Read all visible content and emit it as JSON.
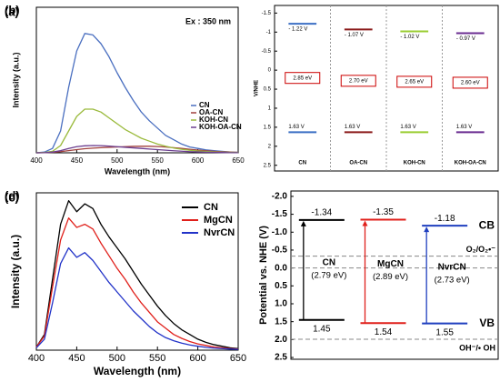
{
  "chart_data": [
    {
      "type": "line",
      "panel_label": "(a)",
      "xlabel": "Wavelength (nm)",
      "ylabel": "Intensity (a.u.)",
      "annotation": "Ex : 350 nm",
      "legend": "right",
      "xlim": [
        400,
        650
      ],
      "xticks": [
        400,
        450,
        500,
        550,
        600,
        650
      ],
      "ylim": [
        0,
        100
      ],
      "x": [
        400,
        410,
        420,
        430,
        440,
        450,
        460,
        470,
        480,
        490,
        500,
        510,
        520,
        530,
        540,
        550,
        560,
        570,
        580,
        590,
        600,
        610,
        620,
        630,
        640,
        650
      ],
      "series": [
        {
          "name": "CN",
          "color": "#4a6fc0",
          "values": [
            0,
            0.5,
            3,
            15,
            45,
            70,
            82,
            81,
            75,
            66,
            55,
            45,
            36,
            28,
            22,
            17,
            12,
            9,
            6,
            4,
            3,
            2,
            1.5,
            1,
            0.5,
            0.3
          ]
        },
        {
          "name": "OA-CN",
          "color": "#a0413d",
          "values": [
            0,
            0.1,
            0.3,
            0.8,
            1.5,
            2.2,
            2.8,
            3.2,
            3.5,
            3.8,
            4,
            4.2,
            4.4,
            4.5,
            4.5,
            4.3,
            4,
            3.5,
            3,
            2.4,
            1.9,
            1.4,
            1,
            0.7,
            0.5,
            0.3
          ]
        },
        {
          "name": "KOH-CN",
          "color": "#9aba3c",
          "values": [
            0,
            0.2,
            1,
            5,
            15,
            25,
            30,
            30,
            28,
            24,
            20,
            16,
            13,
            10,
            8,
            6,
            4.5,
            3.3,
            2.4,
            1.7,
            1.2,
            0.9,
            0.6,
            0.4,
            0.3,
            0.2
          ]
        },
        {
          "name": "KOH-OA-CN",
          "color": "#6b3d8f",
          "values": [
            0,
            0.1,
            0.5,
            1.5,
            3,
            4.2,
            4.8,
            5,
            4.9,
            4.6,
            4.2,
            3.8,
            3.4,
            3,
            2.6,
            2.2,
            1.8,
            1.4,
            1.1,
            0.8,
            0.6,
            0.4,
            0.3,
            0.2,
            0.1,
            0.1
          ]
        }
      ]
    },
    {
      "type": "band",
      "panel_label": "(b)",
      "ylabel": "V/NHE",
      "dividers": true,
      "ylim": [
        -1.7,
        2.65
      ],
      "yticks": [
        -1.5,
        -1,
        -0.5,
        0,
        0.5,
        1,
        1.5,
        2,
        2.5
      ],
      "categories": [
        "CN",
        "OA-CN",
        "KOH-CN",
        "KOH-OA-CN"
      ],
      "colors": [
        "#3b6fc4",
        "#8b1a1a",
        "#9acd32",
        "#6a2c91"
      ],
      "cb_values": [
        -1.22,
        -1.07,
        -1.02,
        -0.97
      ],
      "cb_labels": [
        "- 1.22 V",
        "- 1.07 V",
        "- 1.02 V",
        "- 0.97 V"
      ],
      "vb_values": [
        1.63,
        1.63,
        1.63,
        1.63
      ],
      "vb_labels": [
        "1.63 V",
        "1.63 V",
        "1.63 V",
        "1.63 V"
      ],
      "gaps": [
        2.85,
        2.7,
        2.65,
        2.6
      ],
      "gap_labels": [
        "2.85 eV",
        "2.70 eV",
        "2.65 eV",
        "2.60 eV"
      ]
    },
    {
      "type": "line",
      "panel_label": "(c)",
      "xlabel": "Wavelength (nm)",
      "ylabel": "Intensity (a.u.)",
      "legend": "upper-right",
      "xlim": [
        400,
        650
      ],
      "xticks": [
        400,
        450,
        500,
        550,
        600,
        650
      ],
      "ylim": [
        0,
        100
      ],
      "x": [
        400,
        410,
        420,
        430,
        440,
        450,
        460,
        470,
        480,
        490,
        500,
        510,
        520,
        530,
        540,
        550,
        560,
        570,
        580,
        590,
        600,
        610,
        620,
        630,
        640,
        650
      ],
      "series": [
        {
          "name": "CN",
          "color": "#000000",
          "values": [
            2,
            10,
            45,
            80,
            95,
            88,
            93,
            90,
            80,
            72,
            65,
            58,
            50,
            42,
            35,
            28,
            22,
            17,
            13,
            10,
            7,
            5,
            3.5,
            2.5,
            1.5,
            1
          ]
        },
        {
          "name": "MgCN",
          "color": "#e0201b",
          "values": [
            2,
            9,
            40,
            70,
            84,
            78,
            80,
            77,
            68,
            60,
            52,
            45,
            37,
            30,
            24,
            18,
            14,
            10,
            7.5,
            5.5,
            4,
            3,
            2,
            1.5,
            1,
            0.7
          ]
        },
        {
          "name": "NvrCN",
          "color": "#2233c8",
          "values": [
            1.5,
            7,
            30,
            55,
            65,
            59,
            62,
            57,
            50,
            43,
            37,
            31,
            25,
            20,
            15,
            11,
            8,
            6,
            4.5,
            3.3,
            2.5,
            1.8,
            1.3,
            1,
            0.7,
            0.5
          ]
        }
      ]
    },
    {
      "type": "band",
      "panel_label": "(d)",
      "ylabel": "Potential vs. NHE (V)",
      "ylim": [
        -2.15,
        2.55
      ],
      "yticks": [
        {
          "value": -2,
          "label": "-2.0"
        },
        -1.5,
        {
          "value": -1,
          "label": "-1.0"
        },
        -0.5,
        {
          "value": 0,
          "label": "0.0"
        },
        0.5,
        {
          "value": 1,
          "label": "1.0"
        },
        1.5,
        {
          "value": 2,
          "label": "2.0"
        },
        2.5
      ],
      "categories": [
        "CN",
        "MgCN",
        "NvrCN"
      ],
      "colors": [
        "#000000",
        "#e0201b",
        "#1f3fbf"
      ],
      "cb_values": [
        -1.34,
        -1.35,
        -1.18
      ],
      "vb_values": [
        1.45,
        1.54,
        1.55
      ],
      "gaps": [
        2.79,
        2.89,
        2.73
      ],
      "gap_labels": [
        "(2.79 eV)",
        "(2.89 eV)",
        "(2.73 eV)"
      ],
      "cb_label": "CB",
      "vb_label": "VB",
      "references": [
        {
          "value": -0.33,
          "label": "O₂/O₂•⁻"
        },
        {
          "value": 0
        },
        {
          "value": 1.99,
          "label": "OH⁻/• OH"
        }
      ]
    }
  ]
}
